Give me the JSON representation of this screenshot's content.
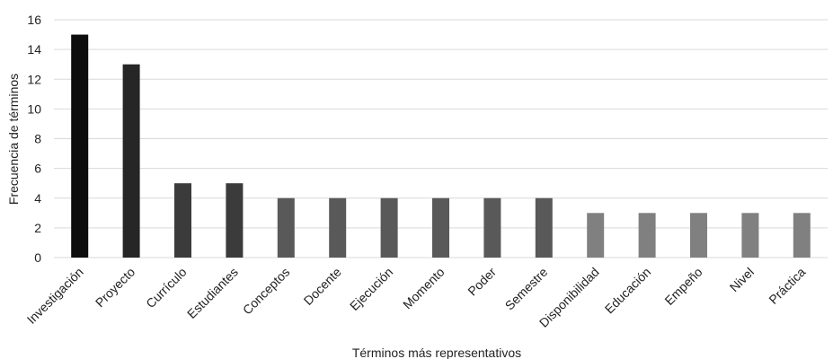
{
  "chart_data": {
    "type": "bar",
    "title": "",
    "xlabel": "Términos más representativos",
    "ylabel": "Frecuencia de términos",
    "ylim": [
      0,
      16
    ],
    "ytick_step": 2,
    "grid": true,
    "legend": "none",
    "categories": [
      "Investigación",
      "Proyecto",
      "Currículo",
      "Estudiantes",
      "Conceptos",
      "Docente",
      "Ejecución",
      "Momento",
      "Poder",
      "Semestre",
      "Disponibilidad",
      "Educación",
      "Empeño",
      "Nivel",
      "Práctica"
    ],
    "values": [
      15,
      13,
      5,
      5,
      4,
      4,
      4,
      4,
      4,
      4,
      3,
      3,
      3,
      3,
      3
    ],
    "colors": [
      "#0d0d0d",
      "#262626",
      "#3b3b3b",
      "#3b3b3b",
      "#595959",
      "#595959",
      "#595959",
      "#595959",
      "#595959",
      "#595959",
      "#808080",
      "#808080",
      "#808080",
      "#808080",
      "#808080"
    ],
    "gridline_color": "#d9d9d9"
  }
}
